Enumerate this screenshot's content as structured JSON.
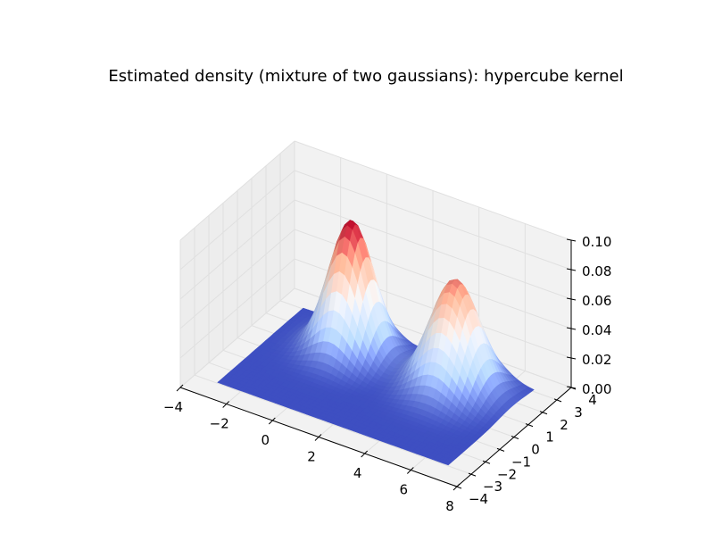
{
  "chart_data": {
    "type": "surface",
    "title": "Estimated density (mixture of two gaussians): hypercube kernel",
    "xlabel": "",
    "ylabel": "",
    "zlabel": "",
    "xlim": [
      -4,
      8
    ],
    "ylim": [
      -4,
      4
    ],
    "zlim": [
      0,
      0.1
    ],
    "x_ticks": [
      "−4",
      "−2",
      "0",
      "2",
      "4",
      "6",
      "8"
    ],
    "y_ticks": [
      "−4",
      "−3",
      "−2",
      "−1",
      "0",
      "1",
      "2",
      "3",
      "4"
    ],
    "z_ticks": [
      "0.00",
      "0.02",
      "0.04",
      "0.06",
      "0.08",
      "0.10"
    ],
    "grid": true,
    "colormap": [
      "#3b4cc0",
      "#aac7fd",
      "#dddddd",
      "#f7a789",
      "#b40426"
    ],
    "surface_x_range": [
      -3,
      7
    ],
    "surface_y_range": [
      -3,
      3
    ],
    "peaks": [
      {
        "x": 0.0,
        "y": 1.5,
        "height": 0.089,
        "sigma": 0.85
      },
      {
        "x": 4.5,
        "y": 1.5,
        "height": 0.074,
        "sigma": 0.95
      }
    ]
  }
}
